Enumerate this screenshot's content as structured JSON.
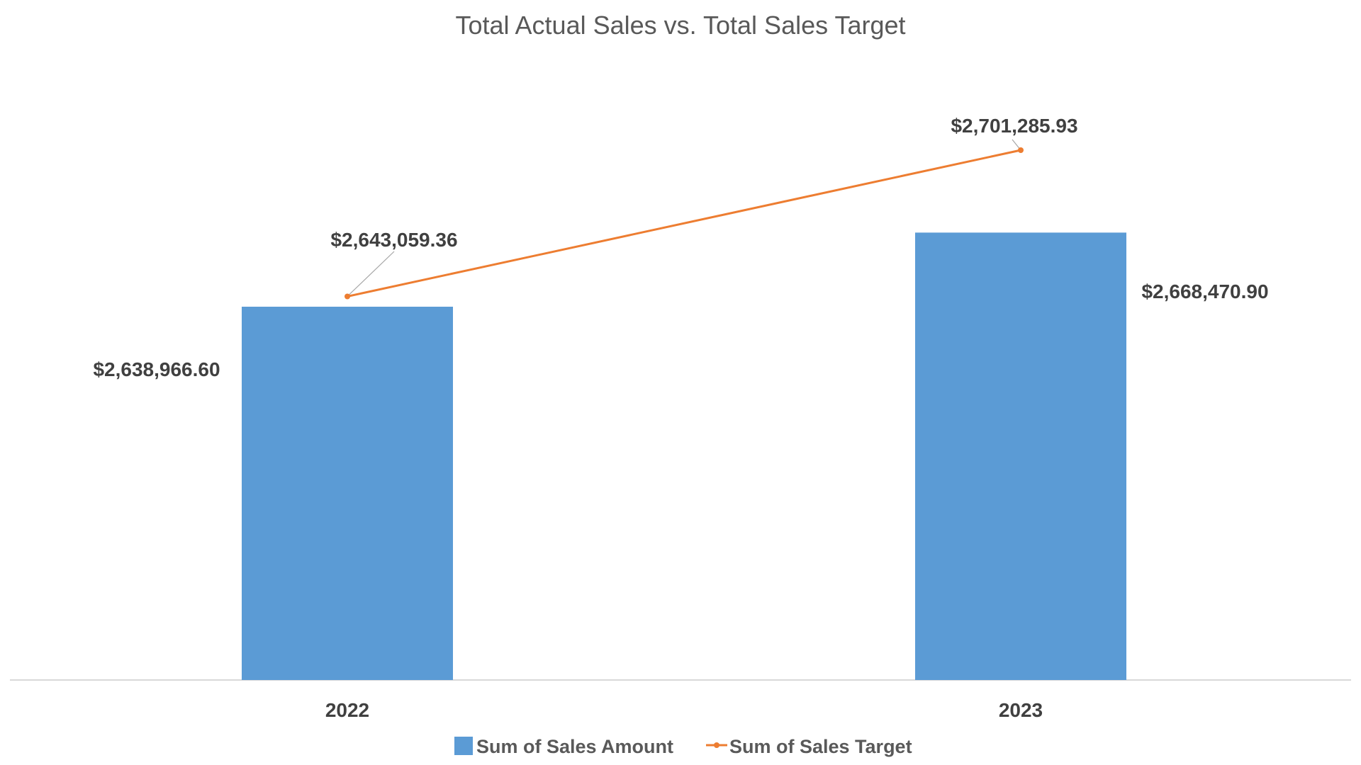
{
  "chart_data": {
    "type": "bar",
    "title": "Total Actual Sales vs. Total Sales Target",
    "categories": [
      "2022",
      "2023"
    ],
    "series": [
      {
        "name": "Sum of Sales Amount",
        "kind": "bar",
        "color": "#5B9BD5",
        "values": [
          2638966.6,
          2668470.9
        ],
        "labels": [
          "$2,638,966.60",
          "$2,668,470.90"
        ]
      },
      {
        "name": "Sum of Sales Target",
        "kind": "line",
        "color": "#ED7D31",
        "values": [
          2643059.36,
          2701285.93
        ],
        "labels": [
          "$2,643,059.36",
          "$2,701,285.93"
        ]
      }
    ],
    "ylim": [
      0,
      2701285.93
    ],
    "xlabel": "",
    "ylabel": "",
    "grid": false,
    "legend": "bottom",
    "y_axis_visible": false
  }
}
